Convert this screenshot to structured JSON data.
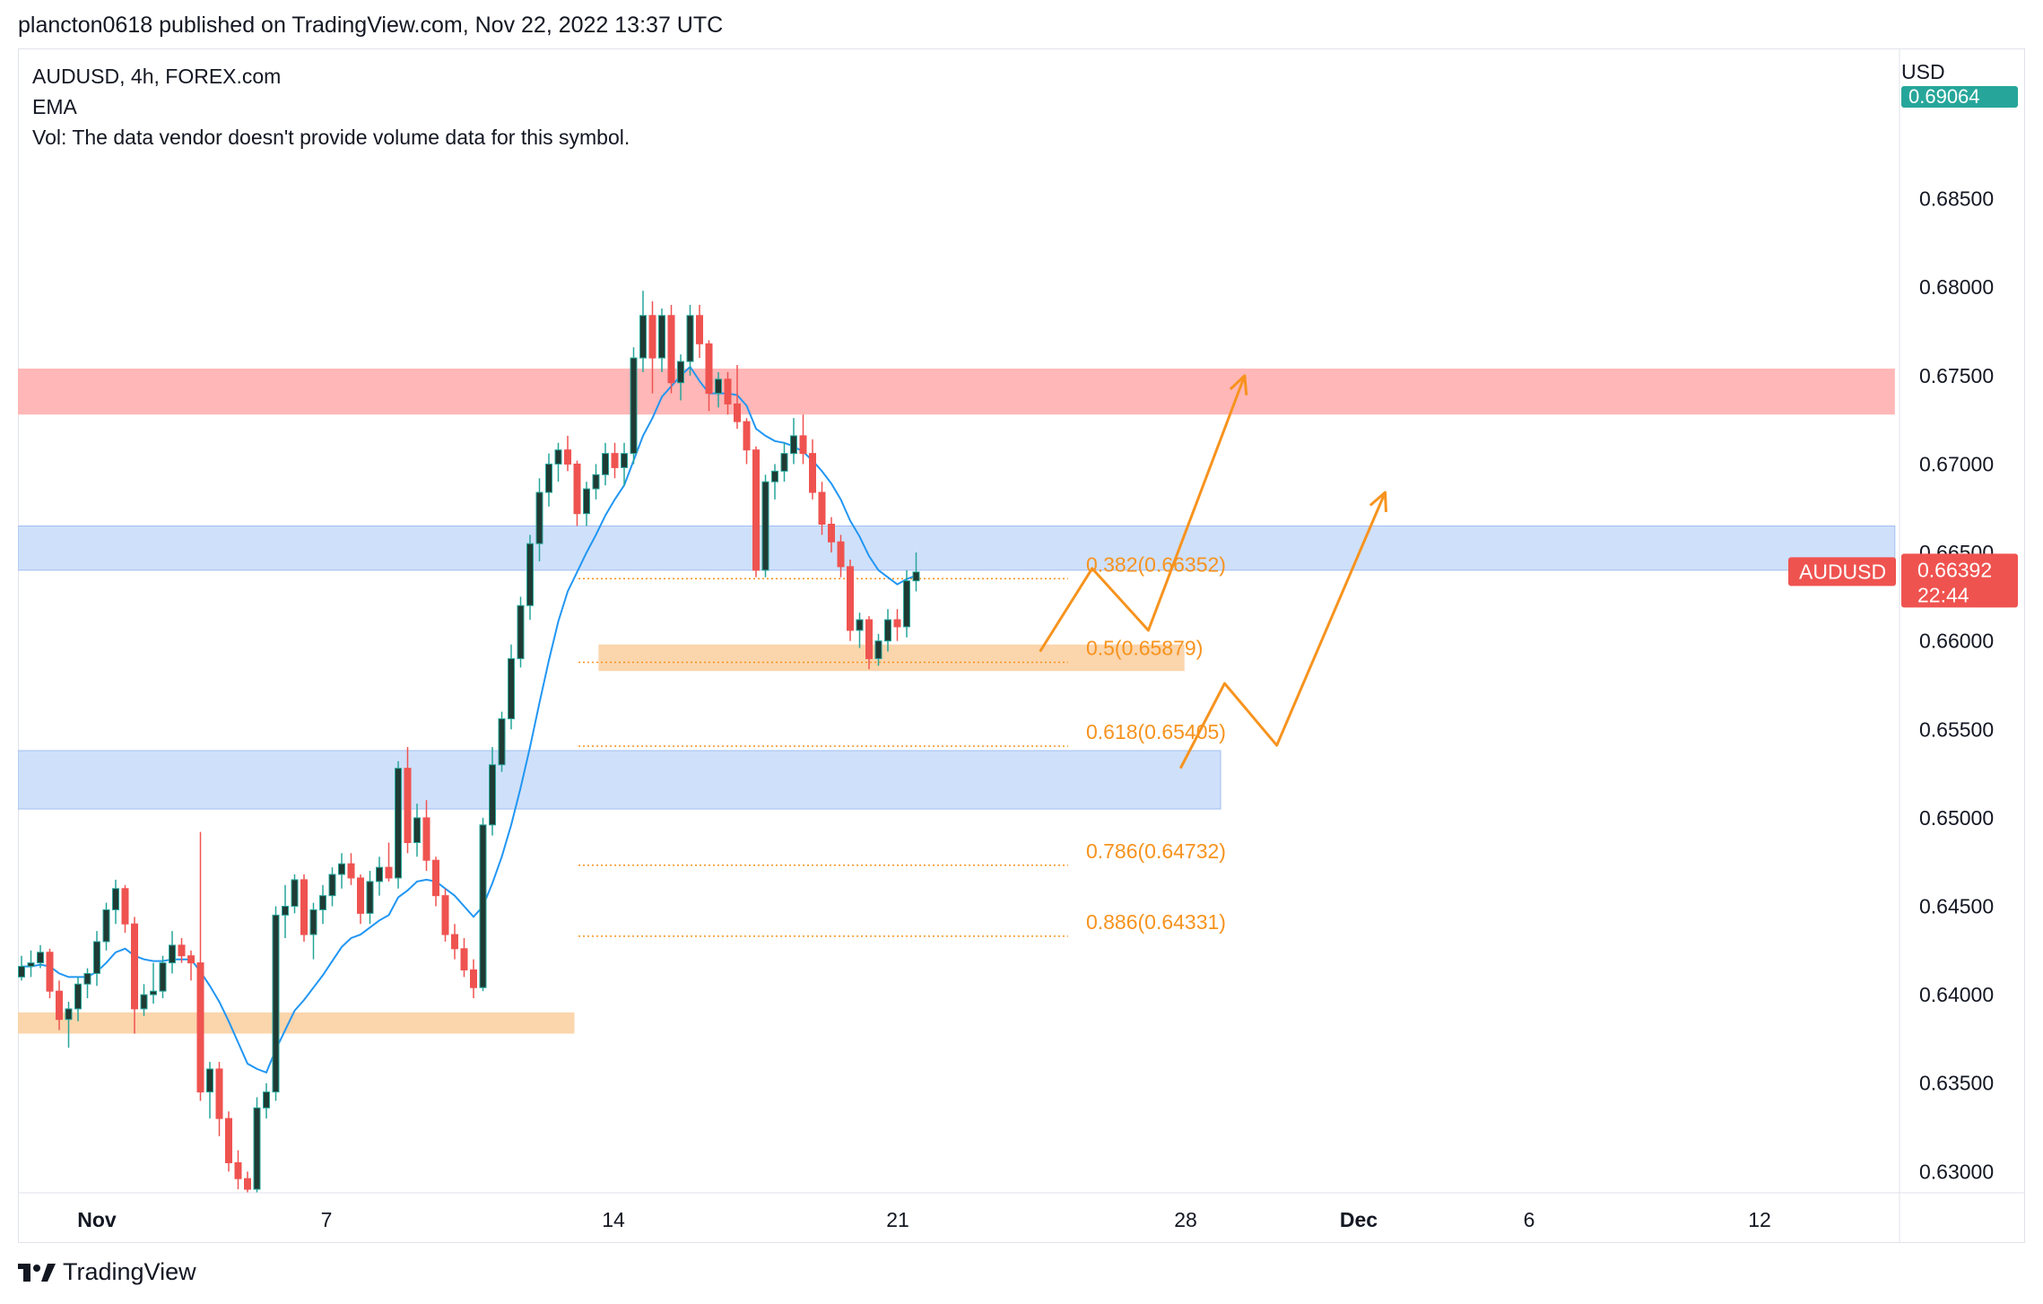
{
  "header": {
    "published": "plancton0618 published on TradingView.com, Nov 22, 2022 13:37 UTC"
  },
  "legend": {
    "symbol": "AUDUSD, 4h, FOREX.com",
    "indicator": "EMA",
    "volume": "Vol: The data vendor doesn't provide volume data for this symbol."
  },
  "footer": {
    "brand": "TradingView"
  },
  "colors": {
    "up": "#26a69a",
    "up_body": "#1f3b34",
    "down": "#ef5350",
    "down_body": "#ef5350",
    "ema": "#2196f3",
    "fib": "#f7931e",
    "resistance_zone": "#ffb3b3",
    "support_zone": "#cddffa",
    "demand_zone": "#fbd3a8",
    "price_badge": "#ef5350",
    "usd_badge": "#26a69a"
  },
  "chart_data": {
    "type": "candlestick",
    "symbol": "AUDUSD",
    "timeframe": "4h",
    "currency": "USD",
    "ylim": [
      0.6288,
      0.6935
    ],
    "y_ticks": [
      "0.63000",
      "0.63500",
      "0.64000",
      "0.64500",
      "0.65000",
      "0.65500",
      "0.66000",
      "0.66500",
      "0.67000",
      "0.67500",
      "0.68000",
      "0.68500"
    ],
    "x_ticks": [
      {
        "label": "Nov",
        "bold": true,
        "day": 1
      },
      {
        "label": "7",
        "bold": false,
        "day": 7
      },
      {
        "label": "14",
        "bold": false,
        "day": 14
      },
      {
        "label": "21",
        "bold": false,
        "day": 21
      },
      {
        "label": "28",
        "bold": false,
        "day": 28
      },
      {
        "label": "Dec",
        "bold": true,
        "day": 31
      },
      {
        "label": "6",
        "bold": false,
        "day": 36
      },
      {
        "label": "12",
        "bold": false,
        "day": 42
      }
    ],
    "current_price": {
      "label": "AUDUSD",
      "value": "0.66392",
      "countdown": "22:44"
    },
    "top_price": {
      "value": "0.69064"
    },
    "fib_levels": [
      {
        "label": "0.382(0.66352)",
        "value": 0.66352
      },
      {
        "label": "0.5(0.65879)",
        "value": 0.65879
      },
      {
        "label": "0.618(0.65405)",
        "value": 0.65405
      },
      {
        "label": "0.786(0.64732)",
        "value": 0.64732
      },
      {
        "label": "0.886(0.64331)",
        "value": 0.64331
      }
    ],
    "fib_day_range": [
      13.0,
      25.2
    ],
    "zones": [
      {
        "name": "resistance",
        "color": "resistance_zone",
        "day_start": 0.0,
        "day_end": 45.8,
        "low": 0.6728,
        "high": 0.6754
      },
      {
        "name": "upper-support",
        "color": "support_zone",
        "day_start": 0.0,
        "day_end": 45.8,
        "low": 0.664,
        "high": 0.6665
      },
      {
        "name": "fib-demand",
        "color": "demand_zone",
        "day_start": 13.5,
        "day_end": 28.1,
        "low": 0.6583,
        "high": 0.6598
      },
      {
        "name": "lower-support",
        "color": "support_zone",
        "day_start": 0.0,
        "day_end": 29.0,
        "low": 0.6505,
        "high": 0.6538
      },
      {
        "name": "november-demand",
        "color": "demand_zone",
        "day_start": 0.0,
        "day_end": 12.9,
        "low": 0.6378,
        "high": 0.639
      }
    ],
    "projections": [
      [
        [
          24.5,
          0.6594
        ],
        [
          25.8,
          0.6641
        ],
        [
          27.2,
          0.6606
        ],
        [
          29.6,
          0.675
        ]
      ],
      [
        [
          28.0,
          0.6528
        ],
        [
          29.1,
          0.6576
        ],
        [
          30.4,
          0.6541
        ],
        [
          33.1,
          0.6684
        ]
      ]
    ],
    "candles": [
      [
        0.641,
        0.6422,
        0.6408,
        0.6416
      ],
      [
        0.6416,
        0.6425,
        0.641,
        0.6418
      ],
      [
        0.6418,
        0.6428,
        0.6415,
        0.6424
      ],
      [
        0.6424,
        0.6426,
        0.6398,
        0.6402
      ],
      [
        0.6402,
        0.6408,
        0.638,
        0.6386
      ],
      [
        0.6386,
        0.6396,
        0.637,
        0.6392
      ],
      [
        0.6392,
        0.641,
        0.6385,
        0.6406
      ],
      [
        0.6406,
        0.6415,
        0.6398,
        0.6412
      ],
      [
        0.6412,
        0.6436,
        0.6405,
        0.643
      ],
      [
        0.643,
        0.6452,
        0.6425,
        0.6448
      ],
      [
        0.6448,
        0.6465,
        0.644,
        0.646
      ],
      [
        0.646,
        0.6462,
        0.6435,
        0.644
      ],
      [
        0.644,
        0.6444,
        0.6378,
        0.6392
      ],
      [
        0.6392,
        0.6406,
        0.6388,
        0.64
      ],
      [
        0.64,
        0.6418,
        0.6395,
        0.6402
      ],
      [
        0.6402,
        0.6422,
        0.6398,
        0.6418
      ],
      [
        0.6418,
        0.6436,
        0.6412,
        0.6428
      ],
      [
        0.6428,
        0.6432,
        0.6418,
        0.6422
      ],
      [
        0.6422,
        0.6425,
        0.6408,
        0.6418
      ],
      [
        0.6418,
        0.6492,
        0.634,
        0.6345
      ],
      [
        0.6345,
        0.6362,
        0.633,
        0.6358
      ],
      [
        0.6358,
        0.6362,
        0.632,
        0.633
      ],
      [
        0.633,
        0.6334,
        0.63,
        0.6305
      ],
      [
        0.6305,
        0.6312,
        0.629,
        0.6296
      ],
      [
        0.6296,
        0.63,
        0.6285,
        0.629
      ],
      [
        0.629,
        0.6342,
        0.6288,
        0.6336
      ],
      [
        0.6336,
        0.635,
        0.633,
        0.6345
      ],
      [
        0.6345,
        0.645,
        0.634,
        0.6445
      ],
      [
        0.6445,
        0.6462,
        0.6432,
        0.645
      ],
      [
        0.645,
        0.6468,
        0.6446,
        0.6465
      ],
      [
        0.6465,
        0.6468,
        0.643,
        0.6434
      ],
      [
        0.6434,
        0.6452,
        0.642,
        0.6448
      ],
      [
        0.6448,
        0.6462,
        0.644,
        0.6456
      ],
      [
        0.6456,
        0.6472,
        0.645,
        0.6468
      ],
      [
        0.6468,
        0.648,
        0.646,
        0.6474
      ],
      [
        0.6474,
        0.648,
        0.6462,
        0.6466
      ],
      [
        0.6466,
        0.6468,
        0.644,
        0.6446
      ],
      [
        0.6446,
        0.647,
        0.644,
        0.6464
      ],
      [
        0.6464,
        0.6478,
        0.6456,
        0.6472
      ],
      [
        0.6472,
        0.6486,
        0.6464,
        0.6466
      ],
      [
        0.6466,
        0.6532,
        0.646,
        0.6528
      ],
      [
        0.6528,
        0.654,
        0.648,
        0.6486
      ],
      [
        0.6486,
        0.6508,
        0.6478,
        0.65
      ],
      [
        0.65,
        0.651,
        0.647,
        0.6476
      ],
      [
        0.6476,
        0.6478,
        0.645,
        0.6456
      ],
      [
        0.6456,
        0.646,
        0.643,
        0.6434
      ],
      [
        0.6434,
        0.644,
        0.642,
        0.6426
      ],
      [
        0.6426,
        0.6432,
        0.641,
        0.6414
      ],
      [
        0.6414,
        0.642,
        0.6398,
        0.6404
      ],
      [
        0.6404,
        0.65,
        0.6402,
        0.6496
      ],
      [
        0.6496,
        0.654,
        0.649,
        0.653
      ],
      [
        0.653,
        0.656,
        0.6526,
        0.6556
      ],
      [
        0.6556,
        0.6598,
        0.655,
        0.659
      ],
      [
        0.659,
        0.6625,
        0.6585,
        0.662
      ],
      [
        0.662,
        0.666,
        0.6612,
        0.6655
      ],
      [
        0.6655,
        0.6692,
        0.6645,
        0.6684
      ],
      [
        0.6684,
        0.6706,
        0.6676,
        0.67
      ],
      [
        0.67,
        0.6712,
        0.669,
        0.6708
      ],
      [
        0.6708,
        0.6716,
        0.6696,
        0.67
      ],
      [
        0.67,
        0.6702,
        0.6665,
        0.6672
      ],
      [
        0.6672,
        0.669,
        0.6665,
        0.6686
      ],
      [
        0.6686,
        0.67,
        0.668,
        0.6694
      ],
      [
        0.6694,
        0.6712,
        0.6688,
        0.6706
      ],
      [
        0.6706,
        0.6712,
        0.6692,
        0.6698
      ],
      [
        0.6698,
        0.6712,
        0.6688,
        0.6706
      ],
      [
        0.6706,
        0.6766,
        0.67,
        0.676
      ],
      [
        0.676,
        0.6798,
        0.6752,
        0.6784
      ],
      [
        0.6784,
        0.6792,
        0.674,
        0.676
      ],
      [
        0.676,
        0.6788,
        0.6752,
        0.6784
      ],
      [
        0.6784,
        0.679,
        0.674,
        0.6746
      ],
      [
        0.6746,
        0.6762,
        0.6736,
        0.6758
      ],
      [
        0.6758,
        0.679,
        0.675,
        0.6784
      ],
      [
        0.6784,
        0.679,
        0.676,
        0.6768
      ],
      [
        0.6768,
        0.677,
        0.673,
        0.674
      ],
      [
        0.674,
        0.6752,
        0.6732,
        0.6748
      ],
      [
        0.6748,
        0.6752,
        0.6728,
        0.6734
      ],
      [
        0.6734,
        0.6756,
        0.672,
        0.6724
      ],
      [
        0.6724,
        0.6726,
        0.67,
        0.6708
      ],
      [
        0.6708,
        0.671,
        0.6636,
        0.664
      ],
      [
        0.664,
        0.6694,
        0.6636,
        0.669
      ],
      [
        0.669,
        0.67,
        0.668,
        0.6696
      ],
      [
        0.6696,
        0.6712,
        0.669,
        0.6706
      ],
      [
        0.6706,
        0.6726,
        0.67,
        0.6716
      ],
      [
        0.6716,
        0.6728,
        0.67,
        0.6706
      ],
      [
        0.6706,
        0.6714,
        0.668,
        0.6684
      ],
      [
        0.6684,
        0.669,
        0.666,
        0.6666
      ],
      [
        0.6666,
        0.667,
        0.665,
        0.6656
      ],
      [
        0.6656,
        0.666,
        0.6636,
        0.6642
      ],
      [
        0.6642,
        0.6646,
        0.66,
        0.6606
      ],
      [
        0.6606,
        0.6616,
        0.6596,
        0.6612
      ],
      [
        0.6612,
        0.6614,
        0.6584,
        0.659
      ],
      [
        0.659,
        0.6604,
        0.6586,
        0.66
      ],
      [
        0.66,
        0.6618,
        0.6594,
        0.6612
      ],
      [
        0.6612,
        0.6618,
        0.66,
        0.6608
      ],
      [
        0.6608,
        0.664,
        0.6602,
        0.6634
      ],
      [
        0.6634,
        0.665,
        0.6628,
        0.6639
      ]
    ],
    "ema": [
      0.6416,
      0.6416,
      0.6417,
      0.6416,
      0.6412,
      0.641,
      0.641,
      0.641,
      0.6413,
      0.6418,
      0.6424,
      0.6426,
      0.6422,
      0.642,
      0.6419,
      0.6419,
      0.642,
      0.642,
      0.642,
      0.6413,
      0.6405,
      0.6396,
      0.6385,
      0.6373,
      0.6361,
      0.6358,
      0.6356,
      0.6369,
      0.638,
      0.6391,
      0.6397,
      0.6404,
      0.6411,
      0.6419,
      0.6427,
      0.6432,
      0.6434,
      0.6438,
      0.6442,
      0.6445,
      0.6455,
      0.6459,
      0.6464,
      0.6465,
      0.6464,
      0.646,
      0.6456,
      0.645,
      0.6444,
      0.645,
      0.6463,
      0.6478,
      0.6496,
      0.6517,
      0.654,
      0.6565,
      0.6589,
      0.6611,
      0.6628,
      0.6639,
      0.665,
      0.666,
      0.6671,
      0.668,
      0.6688,
      0.6702,
      0.6716,
      0.6726,
      0.6738,
      0.6744,
      0.675,
      0.6755,
      0.6747,
      0.674,
      0.674,
      0.674,
      0.6739,
      0.6733,
      0.672,
      0.6716,
      0.6713,
      0.6712,
      0.671,
      0.6707,
      0.6702,
      0.6696,
      0.6689,
      0.668,
      0.6668,
      0.6659,
      0.6648,
      0.664,
      0.6636,
      0.6632,
      0.6635,
      0.6637
    ]
  }
}
